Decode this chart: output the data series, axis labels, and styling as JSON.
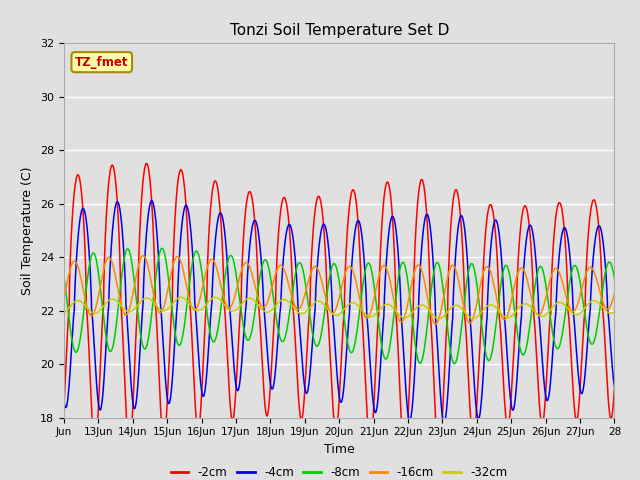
{
  "title": "Tonzi Soil Temperature Set D",
  "xlabel": "Time",
  "ylabel": "Soil Temperature (C)",
  "ylim": [
    18,
    32
  ],
  "yticks": [
    18,
    20,
    22,
    24,
    26,
    28,
    30,
    32
  ],
  "xtick_positions": [
    0,
    1,
    2,
    3,
    4,
    5,
    6,
    7,
    8,
    9,
    10,
    11,
    12,
    13,
    14,
    15,
    16
  ],
  "xtick_labels": [
    "Jun",
    "13Jun",
    "14Jun",
    "15Jun",
    "16Jun",
    "17Jun",
    "18Jun",
    "19Jun",
    "20Jun",
    "21Jun",
    "22Jun",
    "23Jun",
    "24Jun",
    "25Jun",
    "26Jun",
    "27Jun",
    "28"
  ],
  "series_colors": {
    "-2cm": "#FF0000",
    "-4cm": "#0000EE",
    "-8cm": "#00CC00",
    "-16cm": "#FF8800",
    "-32cm": "#CCCC00"
  },
  "series_names": [
    "-2cm",
    "-4cm",
    "-8cm",
    "-16cm",
    "-32cm"
  ],
  "bg_color": "#E0E0E0",
  "annotation_text": "TZ_fmet",
  "annotation_bg": "#FFFFAA",
  "annotation_border": "#AA8800",
  "title_fontsize": 11
}
